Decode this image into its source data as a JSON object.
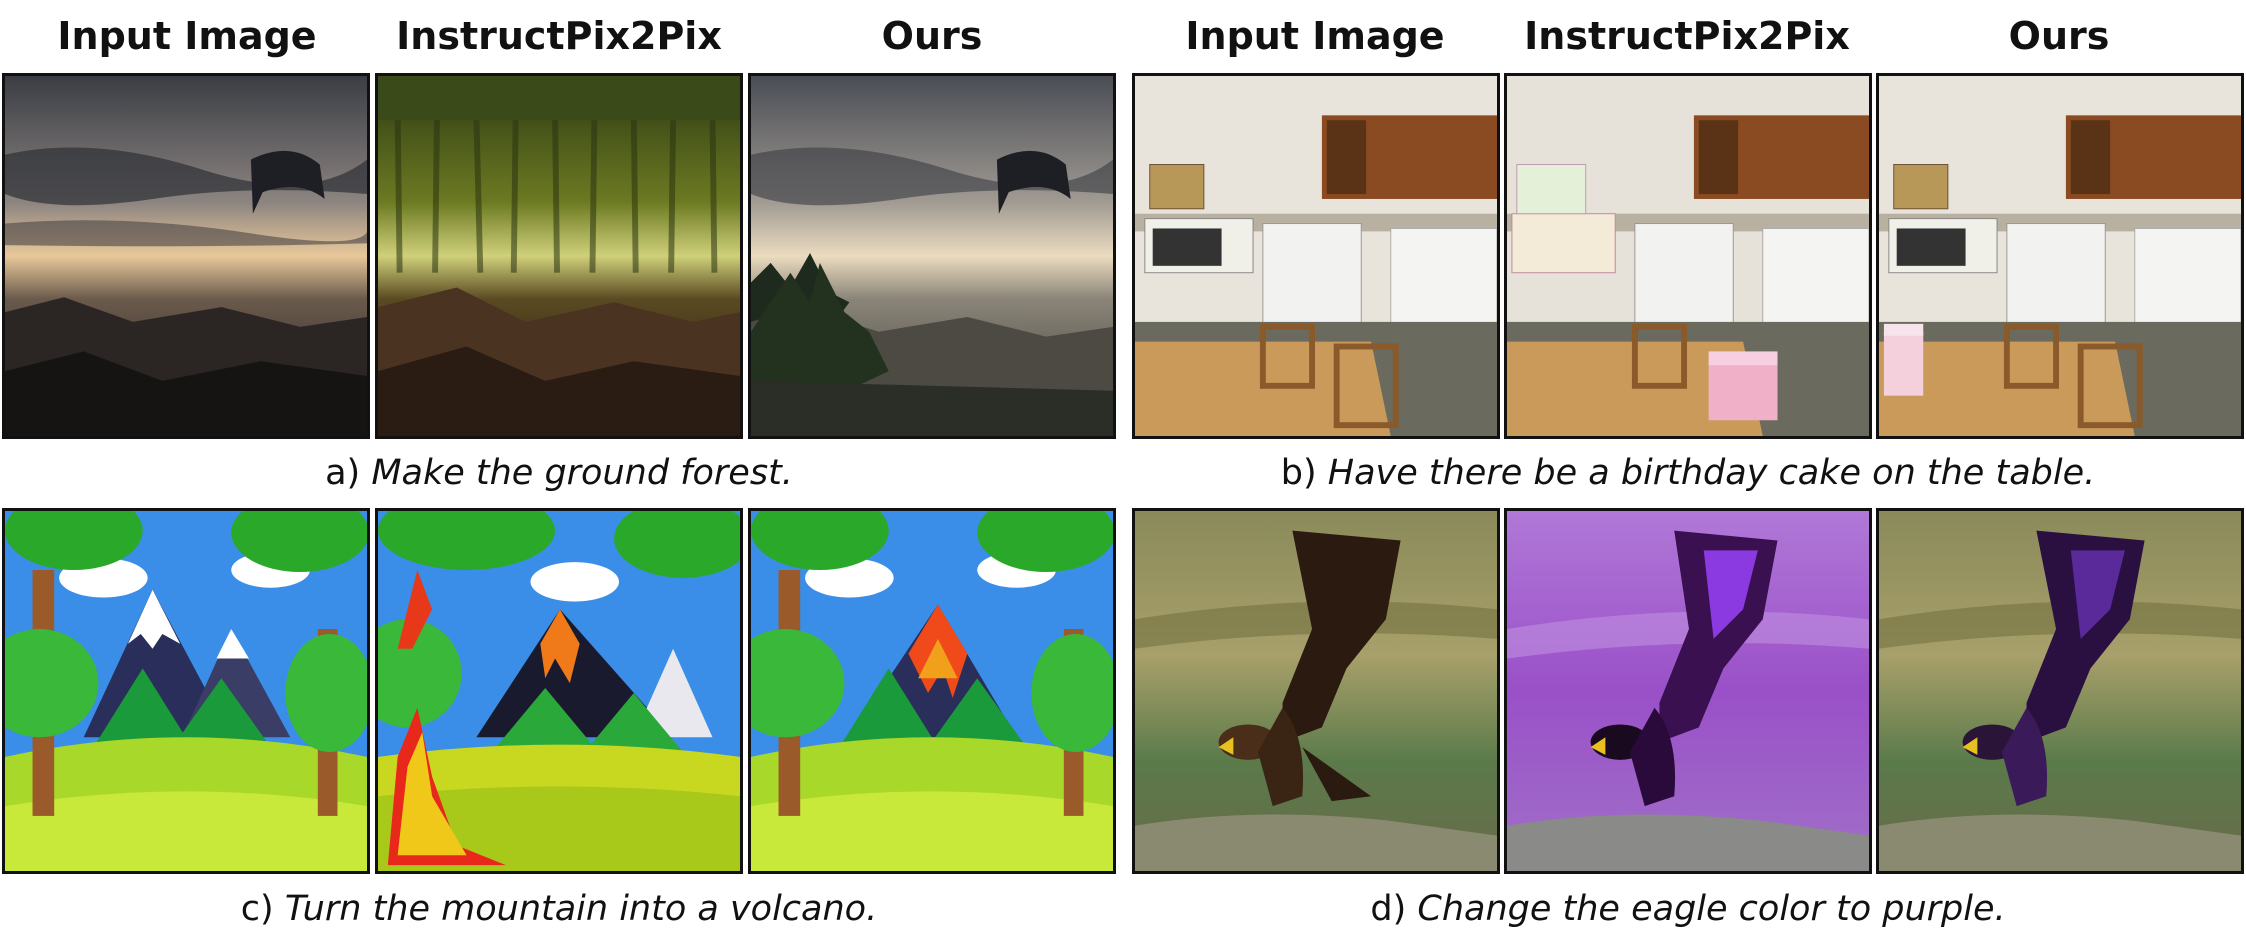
{
  "columns": {
    "input": "Input Image",
    "ip2p": "InstructPix2Pix",
    "ours": "Ours"
  },
  "captions": {
    "a": {
      "label": "a)",
      "text": "Make the ground forest."
    },
    "b": {
      "label": "b)",
      "text": "Have there be a birthday cake on the table."
    },
    "c": {
      "label": "c)",
      "text": "Turn the mountain into a volcano."
    },
    "d": {
      "label": "d)",
      "text": "Change the eagle color to purple."
    }
  }
}
